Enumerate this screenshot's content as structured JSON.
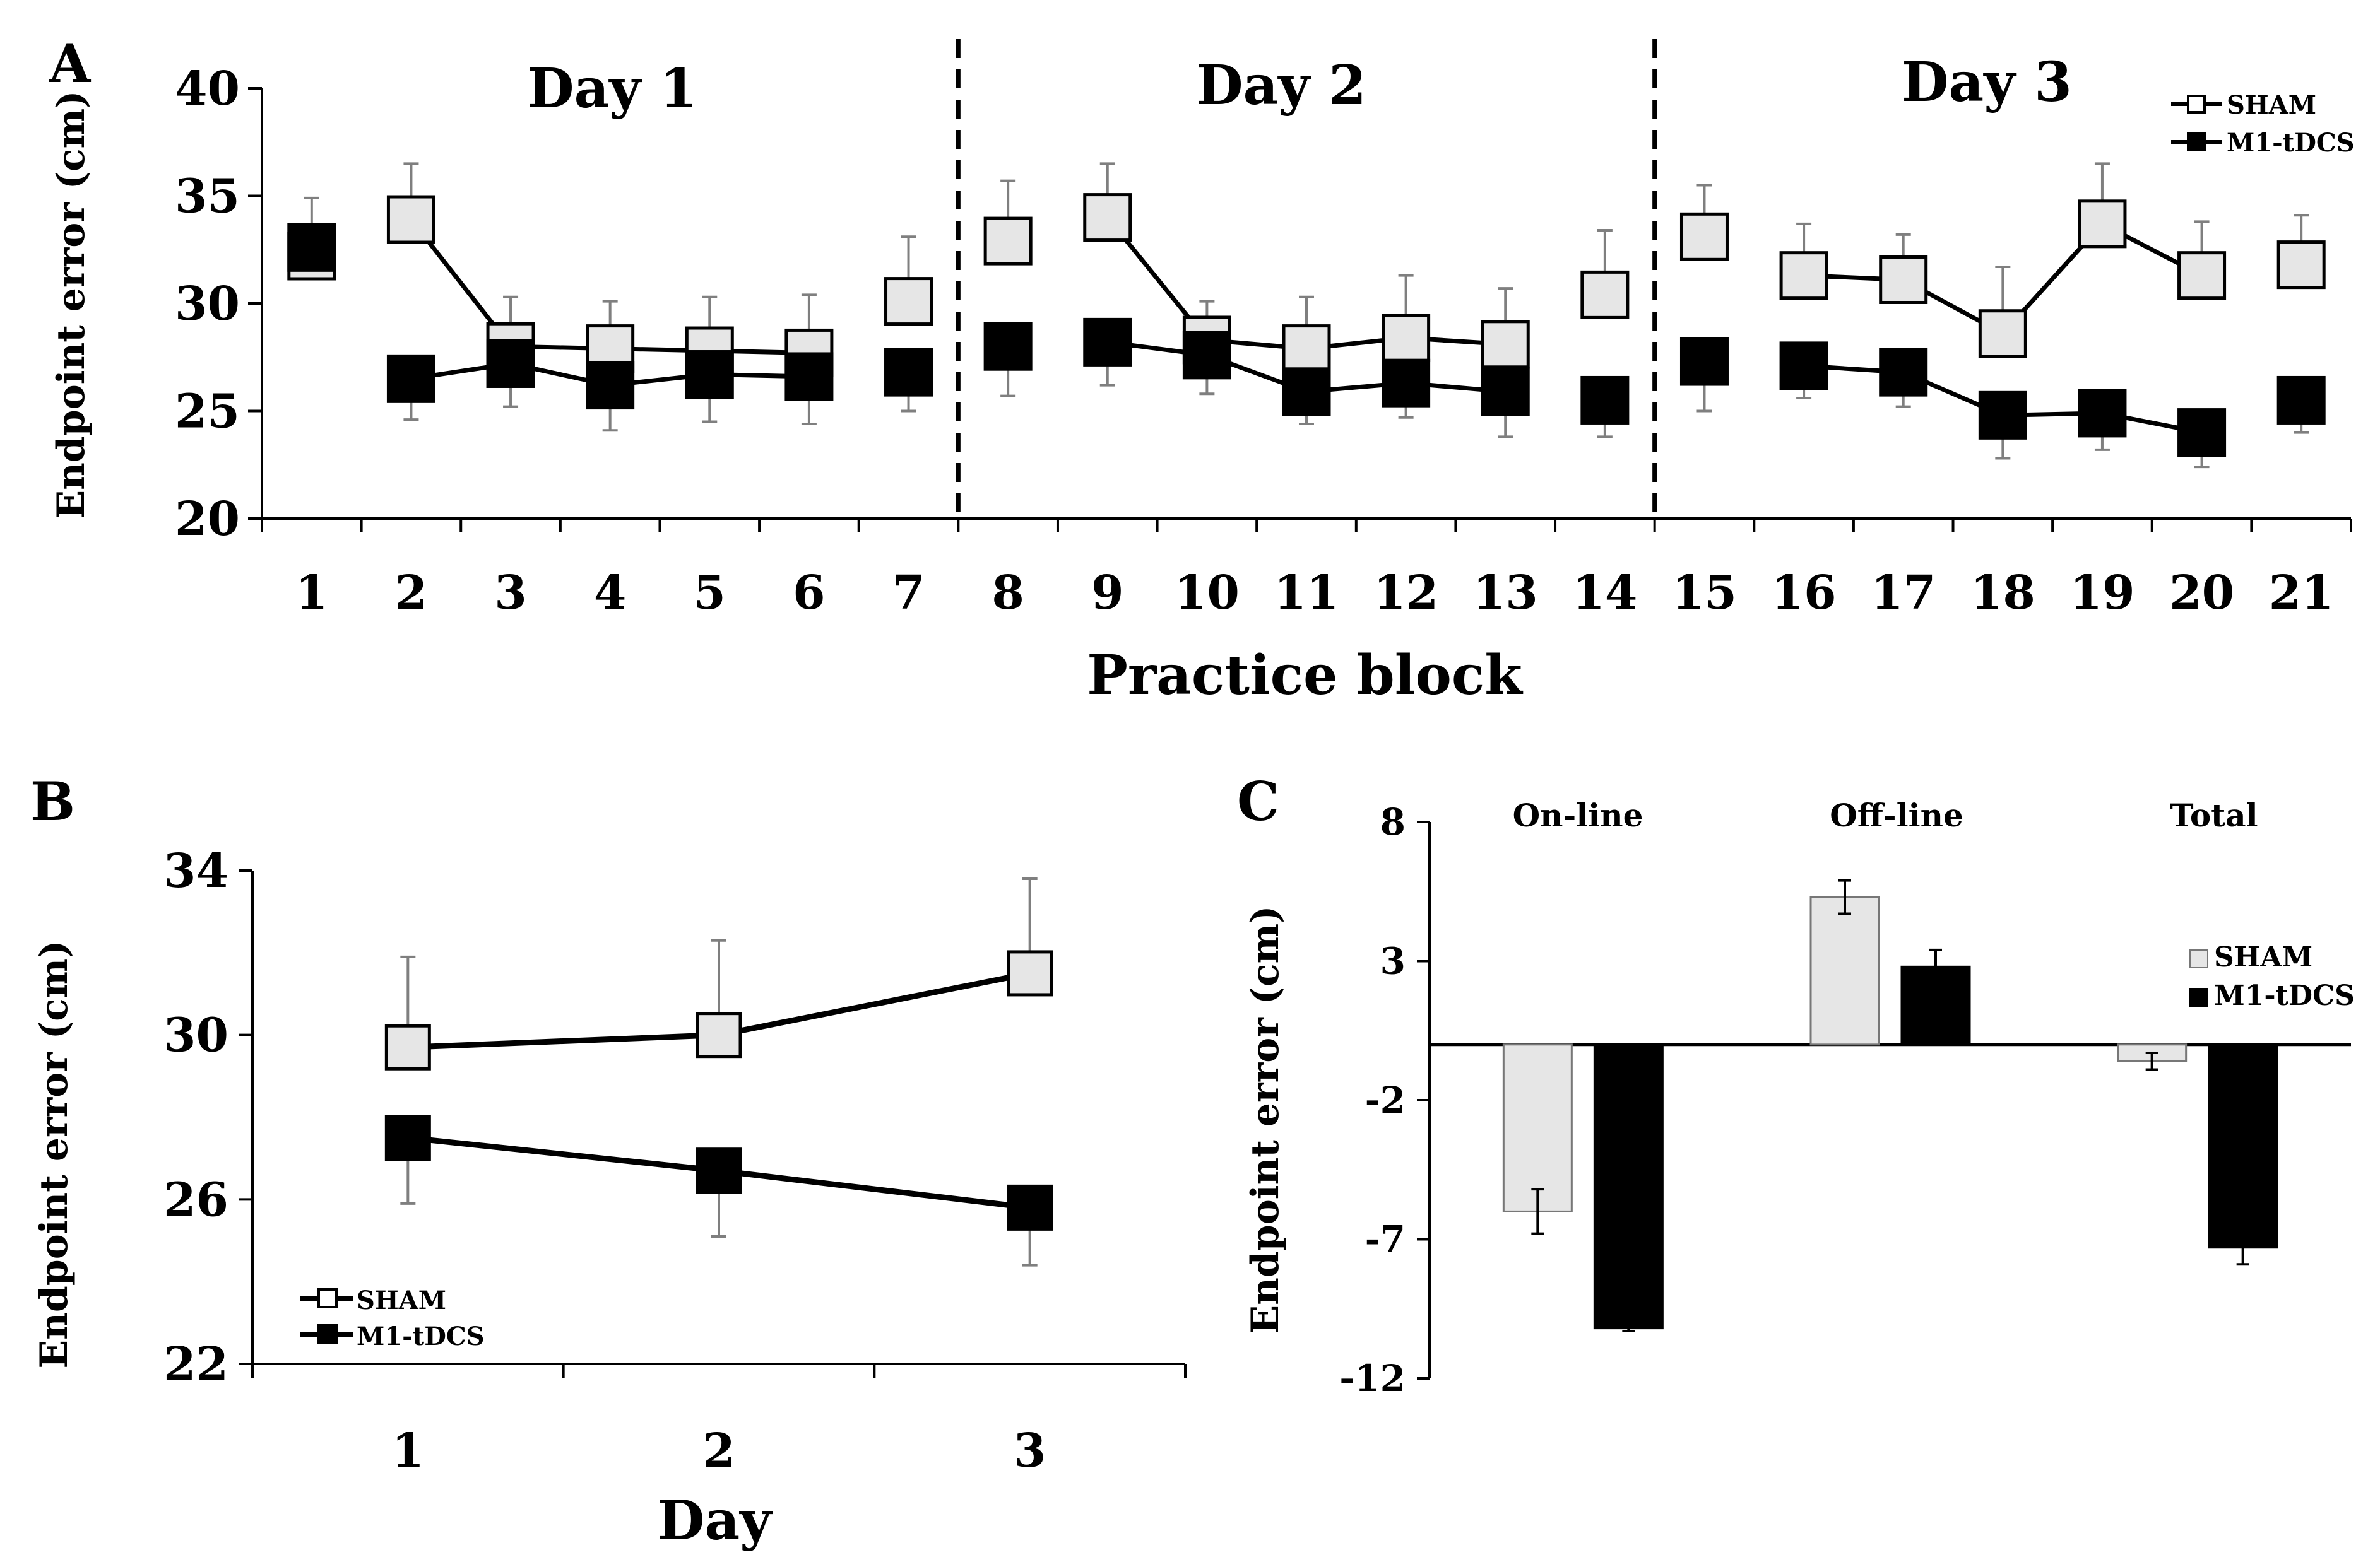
{
  "panel_labels": {
    "a": "A",
    "b": "B",
    "c": "C"
  },
  "colors": {
    "sham_fill": "#e6e6e6",
    "tdcs_fill": "#000000",
    "axis": "#000000",
    "error_bar": "#7f7f7f"
  },
  "chart_data": [
    {
      "id": "panel_A",
      "type": "line",
      "xlabel": "Practice block",
      "ylabel": "Endpoint error (cm)",
      "ylim": [
        20,
        40
      ],
      "yticks": [
        20,
        25,
        30,
        35,
        40
      ],
      "x": [
        1,
        2,
        3,
        4,
        5,
        6,
        7,
        8,
        9,
        10,
        11,
        12,
        13,
        14,
        15,
        16,
        17,
        18,
        19,
        20,
        21
      ],
      "x_tick_labels": [
        "1",
        "2",
        "3",
        "4",
        "5",
        "6",
        "7",
        "8",
        "9",
        "10",
        "11",
        "12",
        "13",
        "14",
        "15",
        "16",
        "17",
        "18",
        "19",
        "20",
        "21"
      ],
      "day_labels": [
        "Day 1",
        "Day 2",
        "Day 3"
      ],
      "day_separators_after_block": [
        7,
        14
      ],
      "connected_ranges": [
        [
          2,
          6
        ],
        [
          9,
          13
        ],
        [
          16,
          20
        ]
      ],
      "series": [
        {
          "name": "SHAM",
          "values": [
            32.2,
            33.9,
            28.0,
            27.9,
            27.8,
            27.7,
            30.1,
            32.9,
            34.0,
            28.3,
            27.9,
            28.4,
            28.1,
            30.4,
            33.1,
            31.3,
            31.1,
            28.6,
            33.7,
            31.3,
            31.8
          ],
          "error": [
            2.7,
            2.6,
            2.3,
            2.2,
            2.5,
            2.7,
            3.0,
            2.8,
            2.5,
            1.8,
            2.4,
            2.9,
            2.6,
            3.0,
            2.4,
            2.4,
            2.1,
            3.1,
            2.8,
            2.5,
            2.3
          ]
        },
        {
          "name": "M1-tDCS",
          "values": [
            32.6,
            26.5,
            27.2,
            26.2,
            26.7,
            26.6,
            26.8,
            28.0,
            28.2,
            27.6,
            25.9,
            26.3,
            25.9,
            25.5,
            27.3,
            27.1,
            26.8,
            24.8,
            24.9,
            24.0,
            25.5
          ],
          "error": [
            1.0,
            1.9,
            2.0,
            2.1,
            2.2,
            2.2,
            1.8,
            2.3,
            2.0,
            1.8,
            1.5,
            1.6,
            2.1,
            1.7,
            2.3,
            1.5,
            1.6,
            2.0,
            1.7,
            1.6,
            1.5
          ]
        }
      ],
      "legend": [
        "SHAM",
        "M1-tDCS"
      ]
    },
    {
      "id": "panel_B",
      "type": "line",
      "xlabel": "Day",
      "ylabel": "Endpoint error (cm)",
      "ylim": [
        22,
        34
      ],
      "yticks": [
        22,
        26,
        30,
        34
      ],
      "x": [
        1,
        2,
        3
      ],
      "x_tick_labels": [
        "1",
        "2",
        "3"
      ],
      "series": [
        {
          "name": "SHAM",
          "values": [
            29.7,
            30.0,
            31.5
          ],
          "error": [
            2.2,
            2.3,
            2.3
          ]
        },
        {
          "name": "M1-tDCS",
          "values": [
            27.5,
            26.7,
            25.8
          ],
          "error": [
            1.6,
            1.6,
            1.4
          ]
        }
      ],
      "legend": [
        "SHAM",
        "M1-tDCS"
      ]
    },
    {
      "id": "panel_C",
      "type": "bar",
      "categories": [
        "On-line",
        "Off-line",
        "Total"
      ],
      "ylabel": "Endpoint error (cm)",
      "ylim": [
        -12,
        8
      ],
      "yticks": [
        8,
        3,
        -2,
        -7,
        -12
      ],
      "series": [
        {
          "name": "SHAM",
          "values": [
            -6.0,
            5.3,
            -0.6
          ],
          "error": [
            0.8,
            0.6,
            0.3
          ]
        },
        {
          "name": "M1-tDCS",
          "values": [
            -10.2,
            2.8,
            -7.3
          ],
          "error": [
            0.1,
            0.6,
            0.6
          ]
        }
      ],
      "legend": [
        "SHAM",
        "M1-tDCS"
      ]
    }
  ]
}
